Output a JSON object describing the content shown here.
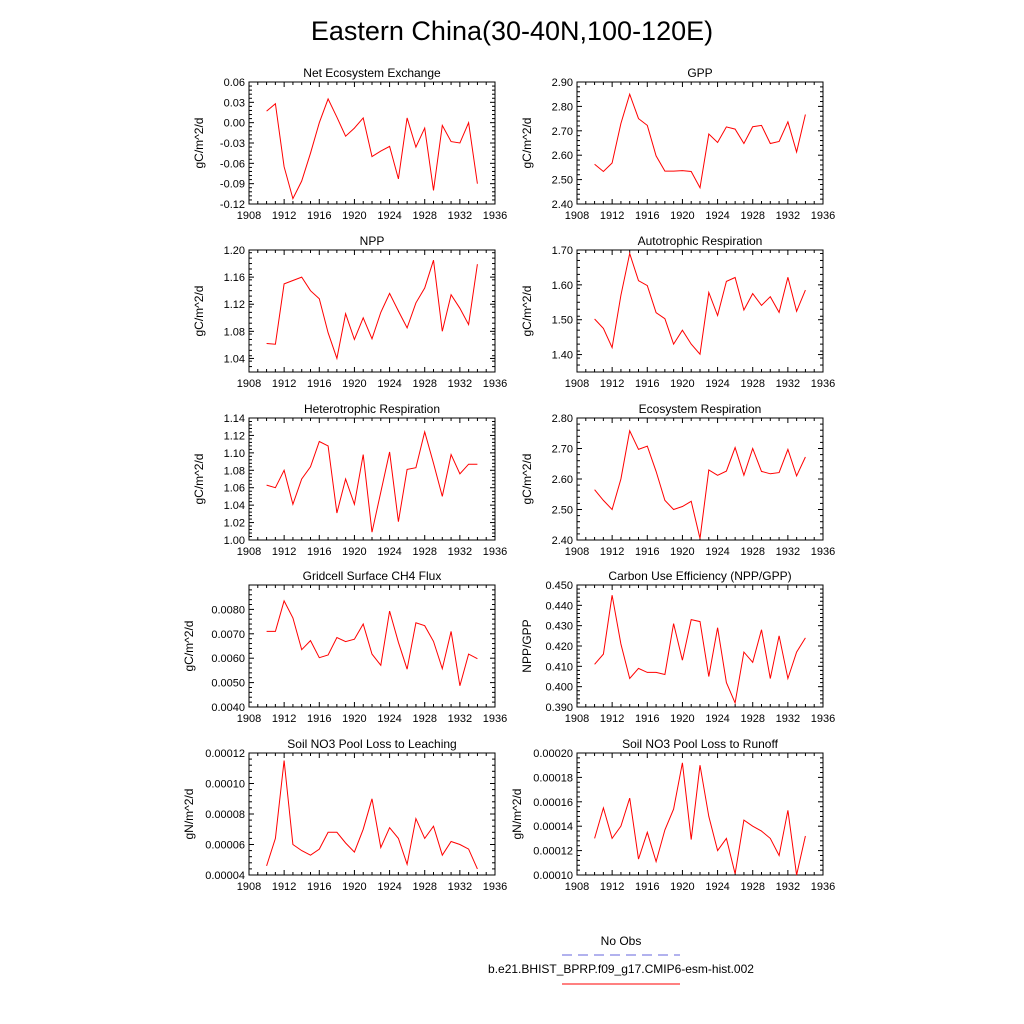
{
  "title": "Eastern China(30-40N,100-120E)",
  "legend": {
    "items": [
      {
        "label": "No Obs",
        "color": "#6666dd",
        "dash": true
      },
      {
        "label": "b.e21.BHIST_BPRP.f09_g17.CMIP6-esm-hist.002",
        "color": "#ff0000",
        "dash": false
      }
    ]
  },
  "chart_data": [
    {
      "type": "line",
      "title": "Net Ecosystem Exchange",
      "ylabel": "gC/m^2/d",
      "xlim": [
        1908,
        1936
      ],
      "xticks": [
        1908,
        1912,
        1916,
        1920,
        1924,
        1928,
        1932,
        1936
      ],
      "ylim": [
        -0.12,
        0.06
      ],
      "yticks": [
        -0.12,
        -0.09,
        -0.06,
        -0.03,
        0.0,
        0.03,
        0.06
      ],
      "ytick_labels": [
        "-0.12",
        "-0.09",
        "-0.06",
        "-0.03",
        "0.00",
        "0.03",
        "0.06"
      ],
      "x": [
        1910,
        1911,
        1912,
        1913,
        1914,
        1915,
        1916,
        1917,
        1918,
        1919,
        1920,
        1921,
        1922,
        1923,
        1924,
        1925,
        1926,
        1927,
        1928,
        1929,
        1930,
        1931,
        1932,
        1933,
        1934
      ],
      "series": [
        {
          "name": "b.e21.BHIST_BPRP.f09_g17.CMIP6-esm-hist.002",
          "color": "#ff0000",
          "values": [
            0.017,
            0.028,
            -0.065,
            -0.112,
            -0.086,
            -0.045,
            0.0,
            0.035,
            0.008,
            -0.02,
            -0.008,
            0.007,
            -0.05,
            -0.042,
            -0.035,
            -0.083,
            0.007,
            -0.036,
            -0.008,
            -0.1,
            -0.004,
            -0.028,
            -0.03,
            0.0,
            -0.09
          ]
        }
      ]
    },
    {
      "type": "line",
      "title": "GPP",
      "ylabel": "gC/m^2/d",
      "xlim": [
        1908,
        1936
      ],
      "xticks": [
        1908,
        1912,
        1916,
        1920,
        1924,
        1928,
        1932,
        1936
      ],
      "ylim": [
        2.4,
        2.9
      ],
      "yticks": [
        2.4,
        2.5,
        2.6,
        2.7,
        2.8,
        2.9
      ],
      "ytick_labels": [
        "2.40",
        "2.50",
        "2.60",
        "2.70",
        "2.80",
        "2.90"
      ],
      "x": [
        1910,
        1911,
        1912,
        1913,
        1914,
        1915,
        1916,
        1917,
        1918,
        1919,
        1920,
        1921,
        1922,
        1923,
        1924,
        1925,
        1926,
        1927,
        1928,
        1929,
        1930,
        1931,
        1932,
        1933,
        1934
      ],
      "series": [
        {
          "name": "b.e21.BHIST_BPRP.f09_g17.CMIP6-esm-hist.002",
          "color": "#ff0000",
          "values": [
            2.563,
            2.533,
            2.568,
            2.73,
            2.85,
            2.75,
            2.722,
            2.597,
            2.535,
            2.535,
            2.537,
            2.533,
            2.467,
            2.687,
            2.652,
            2.716,
            2.707,
            2.648,
            2.717,
            2.722,
            2.648,
            2.656,
            2.737,
            2.613,
            2.767
          ]
        }
      ]
    },
    {
      "type": "line",
      "title": "NPP",
      "ylabel": "gC/m^2/d",
      "xlim": [
        1908,
        1936
      ],
      "xticks": [
        1908,
        1912,
        1916,
        1920,
        1924,
        1928,
        1932,
        1936
      ],
      "ylim": [
        1.02,
        1.2
      ],
      "yticks": [
        1.04,
        1.08,
        1.12,
        1.16,
        1.2
      ],
      "ytick_labels": [
        "1.04",
        "1.08",
        "1.12",
        "1.16",
        "1.20"
      ],
      "x": [
        1910,
        1911,
        1912,
        1913,
        1914,
        1915,
        1916,
        1917,
        1918,
        1919,
        1920,
        1921,
        1922,
        1923,
        1924,
        1925,
        1926,
        1927,
        1928,
        1929,
        1930,
        1931,
        1932,
        1933,
        1934
      ],
      "series": [
        {
          "name": "b.e21.BHIST_BPRP.f09_g17.CMIP6-esm-hist.002",
          "color": "#ff0000",
          "values": [
            1.062,
            1.061,
            1.15,
            1.155,
            1.16,
            1.14,
            1.128,
            1.078,
            1.04,
            1.106,
            1.068,
            1.1,
            1.069,
            1.108,
            1.136,
            1.11,
            1.085,
            1.122,
            1.144,
            1.185,
            1.08,
            1.134,
            1.114,
            1.09,
            1.179
          ]
        }
      ]
    },
    {
      "type": "line",
      "title": "Autotrophic Respiration",
      "ylabel": "gC/m^2/d",
      "xlim": [
        1908,
        1936
      ],
      "xticks": [
        1908,
        1912,
        1916,
        1920,
        1924,
        1928,
        1932,
        1936
      ],
      "ylim": [
        1.35,
        1.7
      ],
      "yticks": [
        1.4,
        1.5,
        1.6,
        1.7
      ],
      "ytick_labels": [
        "1.40",
        "1.50",
        "1.60",
        "1.70"
      ],
      "x": [
        1910,
        1911,
        1912,
        1913,
        1914,
        1915,
        1916,
        1917,
        1918,
        1919,
        1920,
        1921,
        1922,
        1923,
        1924,
        1925,
        1926,
        1927,
        1928,
        1929,
        1930,
        1931,
        1932,
        1933,
        1934
      ],
      "series": [
        {
          "name": "b.e21.BHIST_BPRP.f09_g17.CMIP6-esm-hist.002",
          "color": "#ff0000",
          "values": [
            1.502,
            1.475,
            1.42,
            1.57,
            1.69,
            1.612,
            1.598,
            1.52,
            1.503,
            1.43,
            1.47,
            1.43,
            1.401,
            1.578,
            1.512,
            1.61,
            1.621,
            1.528,
            1.575,
            1.541,
            1.566,
            1.521,
            1.622,
            1.524,
            1.585
          ]
        }
      ]
    },
    {
      "type": "line",
      "title": "Heterotrophic Respiration",
      "ylabel": "gC/m^2/d",
      "xlim": [
        1908,
        1936
      ],
      "xticks": [
        1908,
        1912,
        1916,
        1920,
        1924,
        1928,
        1932,
        1936
      ],
      "ylim": [
        1.0,
        1.14
      ],
      "yticks": [
        1.0,
        1.02,
        1.04,
        1.06,
        1.08,
        1.1,
        1.12,
        1.14
      ],
      "ytick_labels": [
        "1.00",
        "1.02",
        "1.04",
        "1.06",
        "1.08",
        "1.10",
        "1.12",
        "1.14"
      ],
      "x": [
        1910,
        1911,
        1912,
        1913,
        1914,
        1915,
        1916,
        1917,
        1918,
        1919,
        1920,
        1921,
        1922,
        1923,
        1924,
        1925,
        1926,
        1927,
        1928,
        1929,
        1930,
        1931,
        1932,
        1933,
        1934
      ],
      "series": [
        {
          "name": "b.e21.BHIST_BPRP.f09_g17.CMIP6-esm-hist.002",
          "color": "#ff0000",
          "values": [
            1.063,
            1.06,
            1.08,
            1.041,
            1.07,
            1.084,
            1.113,
            1.108,
            1.031,
            1.07,
            1.041,
            1.098,
            1.009,
            1.055,
            1.101,
            1.021,
            1.081,
            1.083,
            1.124,
            1.088,
            1.05,
            1.098,
            1.076,
            1.087,
            1.087
          ]
        }
      ]
    },
    {
      "type": "line",
      "title": "Ecosystem Respiration",
      "ylabel": "gC/m^2/d",
      "xlim": [
        1908,
        1936
      ],
      "xticks": [
        1908,
        1912,
        1916,
        1920,
        1924,
        1928,
        1932,
        1936
      ],
      "ylim": [
        2.4,
        2.8
      ],
      "yticks": [
        2.4,
        2.5,
        2.6,
        2.7,
        2.8
      ],
      "ytick_labels": [
        "2.40",
        "2.50",
        "2.60",
        "2.70",
        "2.80"
      ],
      "x": [
        1910,
        1911,
        1912,
        1913,
        1914,
        1915,
        1916,
        1917,
        1918,
        1919,
        1920,
        1921,
        1922,
        1923,
        1924,
        1925,
        1926,
        1927,
        1928,
        1929,
        1930,
        1931,
        1932,
        1933,
        1934
      ],
      "series": [
        {
          "name": "b.e21.BHIST_BPRP.f09_g17.CMIP6-esm-hist.002",
          "color": "#ff0000",
          "values": [
            2.565,
            2.53,
            2.5,
            2.6,
            2.758,
            2.697,
            2.708,
            2.625,
            2.53,
            2.5,
            2.51,
            2.527,
            2.405,
            2.63,
            2.612,
            2.626,
            2.703,
            2.612,
            2.7,
            2.625,
            2.617,
            2.621,
            2.697,
            2.61,
            2.672
          ]
        }
      ]
    },
    {
      "type": "line",
      "title": "Gridcell Surface CH4 Flux",
      "ylabel": "gC/m^2/d",
      "xlim": [
        1908,
        1936
      ],
      "xticks": [
        1908,
        1912,
        1916,
        1920,
        1924,
        1928,
        1932,
        1936
      ],
      "ylim": [
        0.004,
        0.009
      ],
      "yticks": [
        0.004,
        0.005,
        0.006,
        0.007,
        0.008
      ],
      "ytick_labels": [
        "0.0040",
        "0.0050",
        "0.0060",
        "0.0070",
        "0.0080"
      ],
      "x": [
        1910,
        1911,
        1912,
        1913,
        1914,
        1915,
        1916,
        1917,
        1918,
        1919,
        1920,
        1921,
        1922,
        1923,
        1924,
        1925,
        1926,
        1927,
        1928,
        1929,
        1930,
        1931,
        1932,
        1933,
        1934
      ],
      "series": [
        {
          "name": "b.e21.BHIST_BPRP.f09_g17.CMIP6-esm-hist.002",
          "color": "#ff0000",
          "values": [
            0.0071,
            0.0071,
            0.00835,
            0.00765,
            0.00635,
            0.00672,
            0.00602,
            0.00613,
            0.00685,
            0.00668,
            0.00678,
            0.0074,
            0.00617,
            0.00571,
            0.00793,
            0.00665,
            0.00555,
            0.00745,
            0.00733,
            0.00669,
            0.00557,
            0.0071,
            0.00487,
            0.00617,
            0.00598
          ]
        }
      ]
    },
    {
      "type": "line",
      "title": "Carbon Use Efficiency (NPP/GPP)",
      "ylabel": "NPP/GPP",
      "xlim": [
        1908,
        1936
      ],
      "xticks": [
        1908,
        1912,
        1916,
        1920,
        1924,
        1928,
        1932,
        1936
      ],
      "ylim": [
        0.39,
        0.45
      ],
      "yticks": [
        0.39,
        0.4,
        0.41,
        0.42,
        0.43,
        0.44,
        0.45
      ],
      "ytick_labels": [
        "0.390",
        "0.400",
        "0.410",
        "0.420",
        "0.430",
        "0.440",
        "0.450"
      ],
      "x": [
        1910,
        1911,
        1912,
        1913,
        1914,
        1915,
        1916,
        1917,
        1918,
        1919,
        1920,
        1921,
        1922,
        1923,
        1924,
        1925,
        1926,
        1927,
        1928,
        1929,
        1930,
        1931,
        1932,
        1933,
        1934
      ],
      "series": [
        {
          "name": "b.e21.BHIST_BPRP.f09_g17.CMIP6-esm-hist.002",
          "color": "#ff0000",
          "values": [
            0.411,
            0.416,
            0.445,
            0.421,
            0.404,
            0.409,
            0.407,
            0.407,
            0.406,
            0.431,
            0.413,
            0.433,
            0.432,
            0.405,
            0.429,
            0.402,
            0.392,
            0.417,
            0.412,
            0.428,
            0.404,
            0.425,
            0.404,
            0.417,
            0.424
          ]
        }
      ]
    },
    {
      "type": "line",
      "title": "Soil NO3 Pool Loss to Leaching",
      "ylabel": "gN/m^2/d",
      "xlim": [
        1908,
        1936
      ],
      "xticks": [
        1908,
        1912,
        1916,
        1920,
        1924,
        1928,
        1932,
        1936
      ],
      "ylim": [
        4e-05,
        0.00012
      ],
      "yticks": [
        4e-05,
        6e-05,
        8e-05,
        0.0001,
        0.00012
      ],
      "ytick_labels": [
        "0.00004",
        "0.00006",
        "0.00008",
        "0.00010",
        "0.00012"
      ],
      "x": [
        1910,
        1911,
        1912,
        1913,
        1914,
        1915,
        1916,
        1917,
        1918,
        1919,
        1920,
        1921,
        1922,
        1923,
        1924,
        1925,
        1926,
        1927,
        1928,
        1929,
        1930,
        1931,
        1932,
        1933,
        1934
      ],
      "series": [
        {
          "name": "b.e21.BHIST_BPRP.f09_g17.CMIP6-esm-hist.002",
          "color": "#ff0000",
          "values": [
            4.6e-05,
            6.4e-05,
            0.000115,
            6e-05,
            5.6e-05,
            5.3e-05,
            5.7e-05,
            6.8e-05,
            6.8e-05,
            6.1e-05,
            5.5e-05,
            7e-05,
            9e-05,
            5.8e-05,
            7.1e-05,
            6.4e-05,
            4.7e-05,
            7.7e-05,
            6.4e-05,
            7.2e-05,
            5.3e-05,
            6.2e-05,
            6e-05,
            5.7e-05,
            4.4e-05
          ]
        }
      ]
    },
    {
      "type": "line",
      "title": "Soil NO3 Pool Loss to Runoff",
      "ylabel": "gN/m^2/d",
      "xlim": [
        1908,
        1936
      ],
      "xticks": [
        1908,
        1912,
        1916,
        1920,
        1924,
        1928,
        1932,
        1936
      ],
      "ylim": [
        0.0001,
        0.0002
      ],
      "yticks": [
        0.0001,
        0.00012,
        0.00014,
        0.00016,
        0.00018,
        0.0002
      ],
      "ytick_labels": [
        "0.00010",
        "0.00012",
        "0.00014",
        "0.00016",
        "0.00018",
        "0.00020"
      ],
      "x": [
        1910,
        1911,
        1912,
        1913,
        1914,
        1915,
        1916,
        1917,
        1918,
        1919,
        1920,
        1921,
        1922,
        1923,
        1924,
        1925,
        1926,
        1927,
        1928,
        1929,
        1930,
        1931,
        1932,
        1933,
        1934
      ],
      "series": [
        {
          "name": "b.e21.BHIST_BPRP.f09_g17.CMIP6-esm-hist.002",
          "color": "#ff0000",
          "values": [
            0.00013,
            0.000155,
            0.00013,
            0.00014,
            0.000163,
            0.000113,
            0.000135,
            0.000111,
            0.000137,
            0.000154,
            0.000192,
            0.000129,
            0.00019,
            0.000148,
            0.00012,
            0.00013,
            0.000101,
            0.000145,
            0.00014,
            0.000136,
            0.00013,
            0.000116,
            0.000153,
            0.0001,
            0.000132
          ]
        }
      ]
    }
  ]
}
